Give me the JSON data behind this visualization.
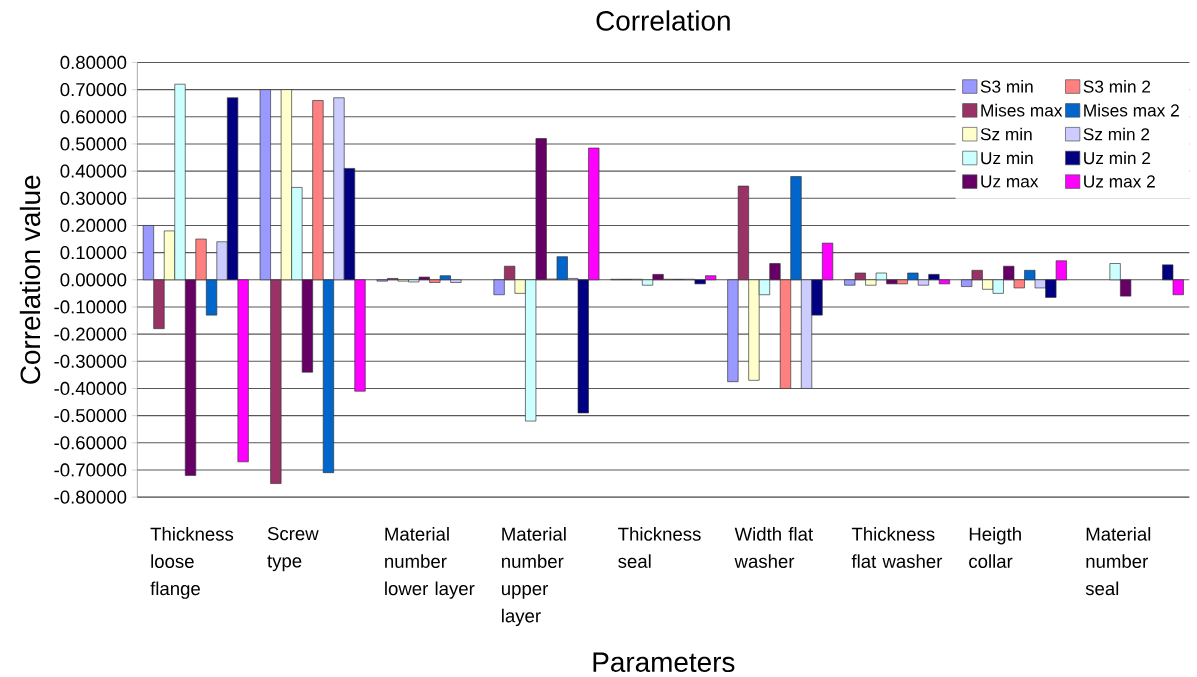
{
  "chart_data": {
    "type": "bar",
    "title": "Correlation",
    "xlabel": "Parameters",
    "ylabel": "Correlation value",
    "categories": [
      "Thickness loose flange",
      "Screw type",
      "Material number lower layer",
      "Material number upper layer",
      "Thickness seal",
      "Width flat washer",
      "Thickness flat washer",
      "Heigth collar",
      "Material number seal"
    ],
    "series": [
      {
        "name": "S3 min",
        "color": "#9999ff",
        "values": [
          0.2,
          0.7,
          -0.005,
          -0.055,
          0.002,
          -0.375,
          -0.02,
          -0.025,
          null
        ]
      },
      {
        "name": "Mises max",
        "color": "#993366",
        "values": [
          -0.18,
          -0.75,
          0.005,
          0.05,
          0.002,
          0.345,
          0.025,
          0.035,
          null
        ]
      },
      {
        "name": "Sz min",
        "color": "#ffffcc",
        "values": [
          0.18,
          0.7,
          -0.005,
          -0.05,
          0.002,
          -0.37,
          -0.02,
          -0.035,
          null
        ]
      },
      {
        "name": "Uz min",
        "color": "#ccffff",
        "values": [
          0.72,
          0.34,
          -0.008,
          -0.52,
          -0.02,
          -0.055,
          0.025,
          -0.05,
          0.06
        ]
      },
      {
        "name": "Uz max",
        "color": "#660066",
        "values": [
          -0.72,
          -0.34,
          0.01,
          0.52,
          0.02,
          0.06,
          -0.015,
          0.05,
          -0.06
        ]
      },
      {
        "name": "S3 min 2",
        "color": "#ff8080",
        "values": [
          0.15,
          0.66,
          -0.01,
          0.003,
          0.002,
          -0.4,
          -0.015,
          -0.03,
          null
        ]
      },
      {
        "name": "Mises max 2",
        "color": "#0066cc",
        "values": [
          -0.13,
          -0.71,
          0.015,
          0.085,
          0.002,
          0.38,
          0.025,
          0.035,
          null
        ]
      },
      {
        "name": "Sz min 2",
        "color": "#ccccff",
        "values": [
          0.14,
          0.67,
          -0.01,
          0.005,
          0.002,
          -0.4,
          -0.02,
          -0.03,
          null
        ]
      },
      {
        "name": "Uz min 2",
        "color": "#000080",
        "values": [
          0.67,
          0.41,
          null,
          -0.49,
          -0.015,
          -0.13,
          0.02,
          -0.065,
          0.055
        ]
      },
      {
        "name": "Uz max 2",
        "color": "#ff00ff",
        "values": [
          -0.67,
          -0.41,
          null,
          0.485,
          0.015,
          0.135,
          -0.015,
          0.07,
          -0.055
        ]
      }
    ],
    "ylim": [
      -0.8,
      0.8
    ],
    "yticks": [
      {
        "value": -0.8,
        "label": "-0.80000"
      },
      {
        "value": -0.7,
        "label": "-0.70000"
      },
      {
        "value": -0.6,
        "label": "-0.60000"
      },
      {
        "value": -0.5,
        "label": "-0.50000"
      },
      {
        "value": -0.4,
        "label": "-0.40000"
      },
      {
        "value": -0.3,
        "label": "-0.30000"
      },
      {
        "value": -0.2,
        "label": "-0.20000"
      },
      {
        "value": -0.1,
        "label": "-0.10000"
      },
      {
        "value": 0,
        "label": "0.00000"
      },
      {
        "value": 0.1,
        "label": "0.10000"
      },
      {
        "value": 0.2,
        "label": "0.20000"
      },
      {
        "value": 0.3,
        "label": "0.30000"
      },
      {
        "value": 0.4,
        "label": "0.40000"
      },
      {
        "value": 0.5,
        "label": "0.50000"
      },
      {
        "value": 0.6,
        "label": "0.60000"
      },
      {
        "value": 0.7,
        "label": "0.70000"
      },
      {
        "value": 0.8,
        "label": "0.80000"
      }
    ],
    "grid": "y",
    "legend": "top right"
  }
}
